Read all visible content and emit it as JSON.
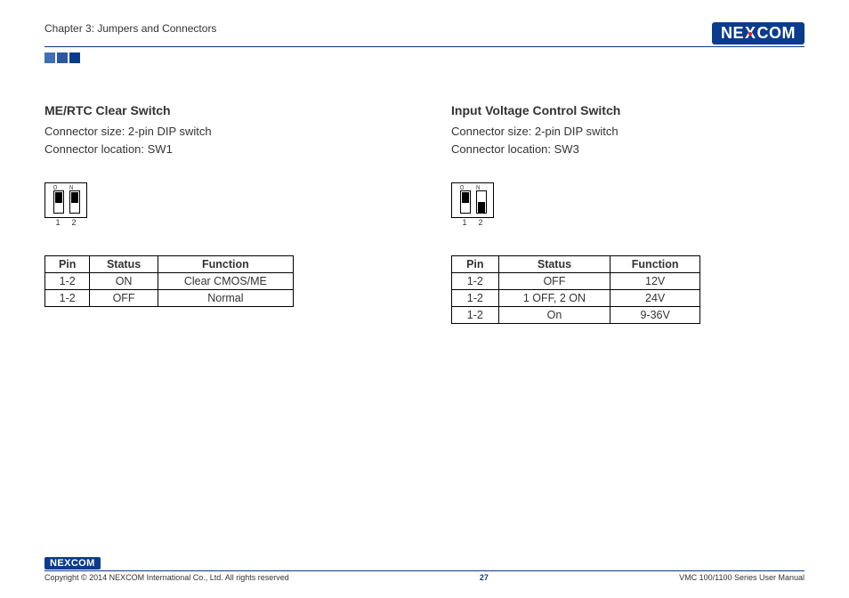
{
  "header": {
    "chapter": "Chapter 3: Jumpers and Connectors",
    "logo_text_pre": "NE",
    "logo_text_x": "X",
    "logo_text_post": "COM"
  },
  "colors": {
    "brand_dark": "#0a3c8c",
    "brand_mid": "#2a57a0",
    "brand_light": "#3f6fb5",
    "accent_red": "#d22"
  },
  "left": {
    "title": "ME/RTC Clear Switch",
    "size_line": "Connector size: 2-pin DIP switch",
    "loc_line": "Connector location: SW1",
    "dip": {
      "on_label": "O N",
      "pin1_label": "1",
      "pin2_label": "2",
      "pin1_position": "up",
      "pin2_position": "up"
    },
    "table": {
      "headers": [
        "Pin",
        "Status",
        "Function"
      ],
      "rows": [
        [
          "1-2",
          "ON",
          "Clear CMOS/ME"
        ],
        [
          "1-2",
          "OFF",
          "Normal"
        ]
      ]
    }
  },
  "right": {
    "title": "Input Voltage Control Switch",
    "size_line": "Connector size: 2-pin DIP switch",
    "loc_line": "Connector location: SW3",
    "dip": {
      "on_label": "O N",
      "pin1_label": "1",
      "pin2_label": "2",
      "pin1_position": "up",
      "pin2_position": "down"
    },
    "table": {
      "headers": [
        "Pin",
        "Status",
        "Function"
      ],
      "rows": [
        [
          "1-2",
          "OFF",
          "12V"
        ],
        [
          "1-2",
          "1 OFF, 2 ON",
          "24V"
        ],
        [
          "1-2",
          "On",
          "9-36V"
        ]
      ]
    }
  },
  "footer": {
    "logo_text": "NEXCOM",
    "copyright": "Copyright © 2014 NEXCOM International Co., Ltd. All rights reserved",
    "page_num": "27",
    "manual": "VMC 100/1100 Series User Manual"
  }
}
